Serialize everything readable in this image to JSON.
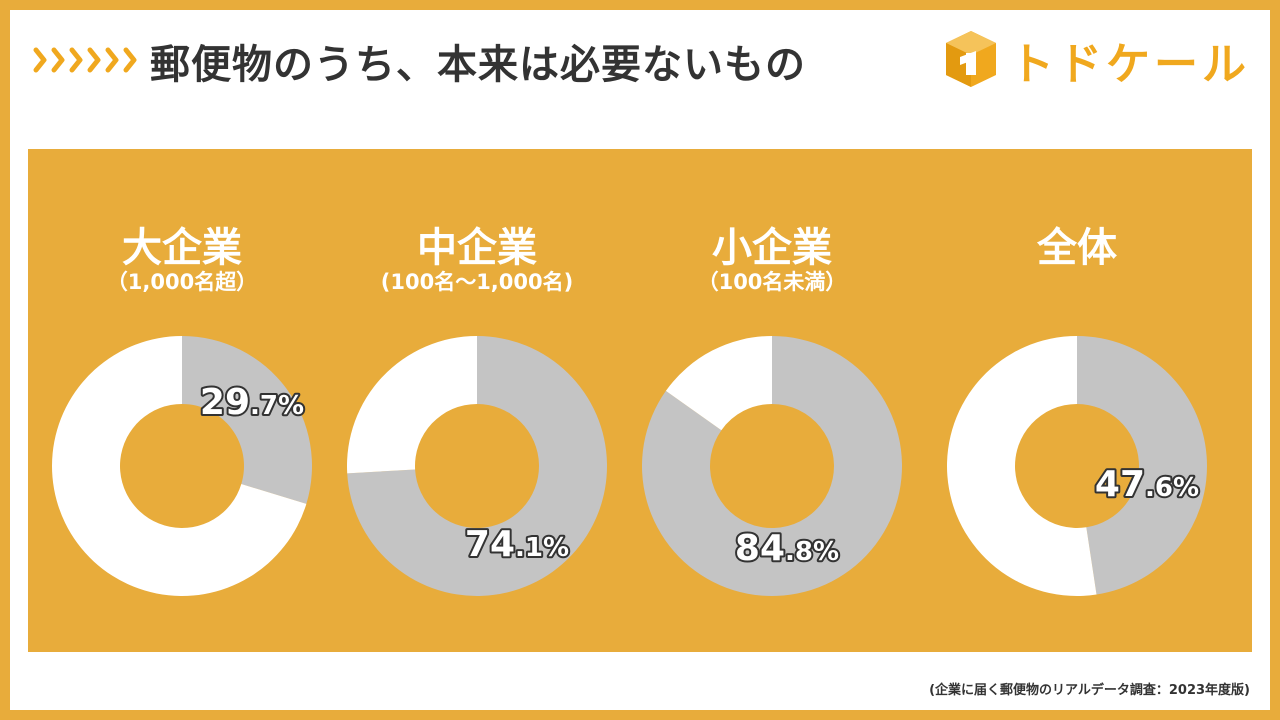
{
  "header": {
    "title": "郵便物のうち、本来は必要ないもの",
    "brand": "トドケール"
  },
  "colors": {
    "accent": "#E8AC3B",
    "brand": "#F0A81E",
    "unneeded": "#C4C4C4",
    "needed": "#FFFFFF",
    "text": "#333333"
  },
  "chart_data": {
    "type": "pie",
    "title": "郵便物のうち、本来は必要ないもの",
    "charts": [
      {
        "name": "大企業",
        "subtitle": "（1,000名超）",
        "value": 29.7,
        "label_int": "29",
        "label_dec": ".7%"
      },
      {
        "name": "中企業",
        "subtitle": "(100名～1,000名)",
        "value": 74.1,
        "label_int": "74",
        "label_dec": ".1%"
      },
      {
        "name": "小企業",
        "subtitle": "（100名未満）",
        "value": 84.8,
        "label_int": "84",
        "label_dec": ".8%"
      },
      {
        "name": "全体",
        "subtitle": "",
        "value": 47.6,
        "label_int": "47",
        "label_dec": ".6%"
      }
    ]
  },
  "footer": {
    "source": "(企業に届く郵便物のリアルデータ調査：2023年度版)"
  }
}
